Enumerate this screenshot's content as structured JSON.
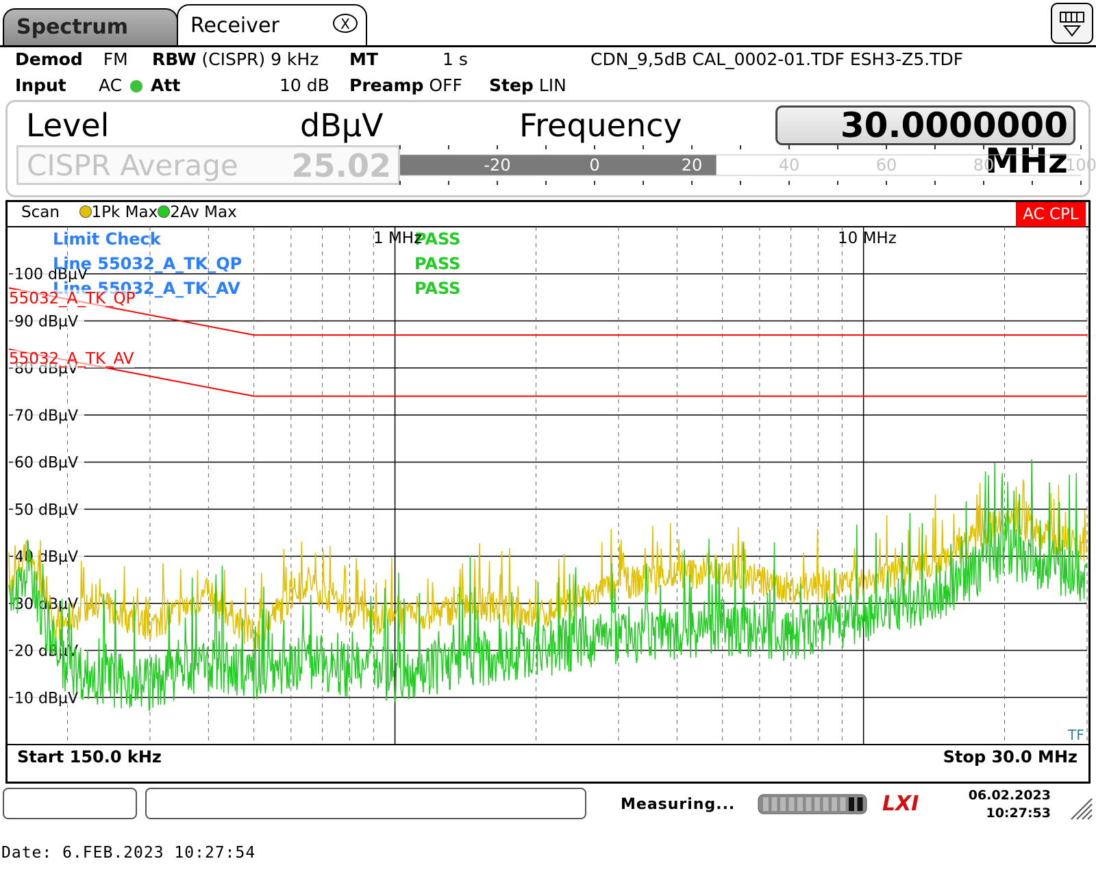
{
  "tabs": [
    {
      "label": "Spectrum"
    },
    {
      "label": "Receiver",
      "close_label": "X"
    }
  ],
  "settings": {
    "demod_label": "Demod",
    "demod_value": "FM",
    "rbw_label": "RBW",
    "rbw_value": "(CISPR) 9 kHz",
    "mt_label": "MT",
    "mt_value": "1 s",
    "transducers": "CDN_9,5dB CAL_0002-01.TDF ESH3-Z5.TDF",
    "input_label": "Input",
    "input_value": "AC",
    "att_label": "Att",
    "att_value": "10 dB",
    "preamp_label": "Preamp",
    "preamp_value": "OFF",
    "step_label": "Step",
    "step_value": "LIN"
  },
  "level_panel": {
    "level_label": "Level",
    "unit_label": "dBµV",
    "frequency_label": "Frequency",
    "frequency_value": "30.0000000 MHz",
    "detector_label": "CISPR Average",
    "level_value": "25.02",
    "bar_fill_value": 25.02,
    "bar_range": [
      -40,
      100
    ],
    "scale_labels": [
      "-20",
      "0",
      "20",
      "40",
      "60",
      "80",
      "100"
    ]
  },
  "diagram": {
    "scan_label": "Scan",
    "trace1_label": "1Pk Max",
    "trace2_label": "2Av Max",
    "trace1_color": "#e0c000",
    "trace2_color": "#22cc22",
    "coupling_badge": "AC CPL",
    "coupling_color": "#ff0000",
    "limit_check": {
      "title": "Limit Check",
      "rows": [
        {
          "line": "Line 55032_A_TK_QP",
          "result": "PASS"
        },
        {
          "line": "Line 55032_A_TK_AV",
          "result": "PASS"
        }
      ],
      "title_result": "PASS"
    },
    "limit_lines": [
      {
        "name": "55032_A_TK_QP",
        "color": "#ff0000"
      },
      {
        "name": "55032_A_TK_AV",
        "color": "#ff0000"
      }
    ],
    "freq_markers": [
      "1 MHz",
      "10 MHz"
    ],
    "tf_label": "TF",
    "start_label": "Start 150.0 kHz",
    "stop_label": "Stop 30.0 MHz"
  },
  "chart_data": {
    "type": "line",
    "title": "",
    "xlabel": "",
    "ylabel": "",
    "x_scale": "log",
    "xlim_hz": [
      150000,
      30000000
    ],
    "ylim": [
      0,
      110
    ],
    "y_ticks": [
      "10 dBµV",
      "20 dBµV",
      "30 dBµV",
      "40 dBµV",
      "50 dBµV",
      "60 dBµV",
      "70 dBµV",
      "80 dBµV",
      "90 dBµV",
      "100 dBµV"
    ],
    "grid": true,
    "series": [
      {
        "name": "55032_A_TK_QP",
        "x_hz": [
          150000,
          500000,
          30000000
        ],
        "values": [
          97,
          87,
          87
        ]
      },
      {
        "name": "55032_A_TK_AV",
        "x_hz": [
          150000,
          500000,
          30000000
        ],
        "values": [
          84,
          74,
          74
        ]
      },
      {
        "name": "1Pk Max",
        "x_hz": [
          150000,
          165000,
          190000,
          230000,
          300000,
          400000,
          500000,
          650000,
          800000,
          1000000,
          1500000,
          2000000,
          3000000,
          4000000,
          5000000,
          7000000,
          10000000,
          15000000,
          20000000,
          30000000
        ],
        "values": [
          32,
          41,
          25,
          30,
          25,
          32,
          23,
          35,
          28,
          26,
          30,
          27,
          34,
          36,
          37,
          33,
          34,
          40,
          48,
          41
        ]
      },
      {
        "name": "2Av Max",
        "x_hz": [
          150000,
          165000,
          190000,
          230000,
          300000,
          400000,
          500000,
          650000,
          800000,
          1000000,
          1500000,
          2000000,
          3000000,
          4000000,
          5000000,
          7000000,
          10000000,
          15000000,
          20000000,
          30000000
        ],
        "values": [
          29,
          38,
          18,
          14,
          13,
          17,
          15,
          18,
          16,
          15,
          18,
          20,
          23,
          24,
          25,
          23,
          27,
          33,
          41,
          35
        ]
      }
    ]
  },
  "statusbar": {
    "measuring_text": "Measuring...",
    "lxi_label": "LXI",
    "date": "06.02.2023",
    "time": "10:27:53"
  },
  "footer": {
    "text": "Date: 6.FEB.2023  10:27:54"
  }
}
